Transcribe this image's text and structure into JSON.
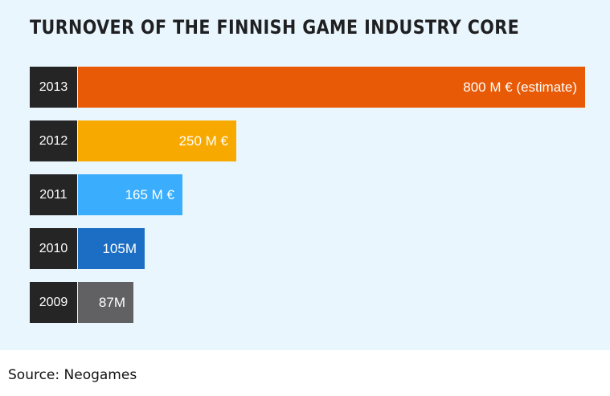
{
  "chart_data": {
    "type": "bar",
    "orientation": "horizontal",
    "title": "TURNOVER OF THE FINNISH GAME INDUSTRY CORE",
    "unit": "M €",
    "categories": [
      "2013",
      "2012",
      "2011",
      "2010",
      "2009"
    ],
    "values": [
      800,
      250,
      165,
      105,
      87
    ],
    "value_labels": [
      "800 M € (estimate)",
      "250 M €",
      "165 M €",
      "105M",
      "87M"
    ],
    "bar_colors": [
      "#e85a06",
      "#f7a900",
      "#3aaefc",
      "#1b6ec3",
      "#616163"
    ],
    "year_cell_color": "#252526",
    "background_color": "#eaf6fd",
    "grid": false,
    "legend": "none"
  },
  "source": "Source: Neogames"
}
